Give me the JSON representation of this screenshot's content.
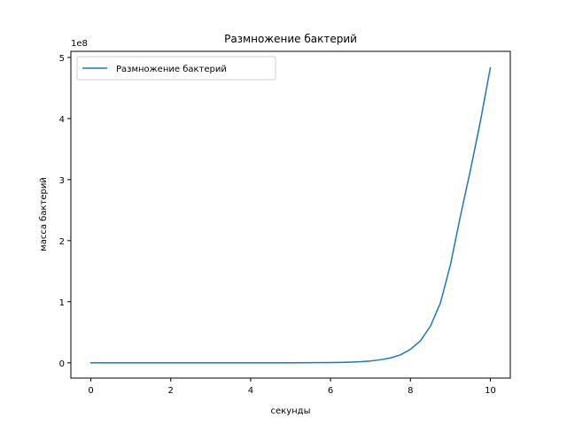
{
  "chart_data": {
    "type": "line",
    "title": "Размножение бактерий",
    "xlabel": "секунды",
    "ylabel": "масса бактерий",
    "y_offset_label": "1e8",
    "xlim": [
      -0.5,
      10.5
    ],
    "ylim": [
      -0.25,
      5.1
    ],
    "y_scale_factor": 100000000,
    "x_ticks": [
      0,
      2,
      4,
      6,
      8,
      10
    ],
    "x_tick_labels": [
      "0",
      "2",
      "4",
      "6",
      "8",
      "10"
    ],
    "y_ticks": [
      0,
      1,
      2,
      3,
      4,
      5
    ],
    "y_tick_labels": [
      "0",
      "1",
      "2",
      "3",
      "4",
      "5"
    ],
    "grid": false,
    "legend_position": "upper-left",
    "series": [
      {
        "name": "Размножение бактерий",
        "color": "#1f77b4",
        "x": [
          0,
          0.5,
          1,
          1.5,
          2,
          2.5,
          3,
          3.5,
          4,
          4.5,
          5,
          5.5,
          6,
          6.25,
          6.5,
          6.75,
          7,
          7.25,
          7.5,
          7.75,
          8,
          8.25,
          8.5,
          8.75,
          9,
          9.25,
          9.5,
          9.75,
          10
        ],
        "values": [
          0,
          0,
          0,
          0,
          0,
          0,
          0,
          0,
          0,
          0,
          0.0003,
          0.0012,
          0.004,
          0.006,
          0.011,
          0.018,
          0.03,
          0.05,
          0.08,
          0.13,
          0.22,
          0.36,
          0.6,
          0.98,
          1.6,
          2.4,
          3.15,
          3.95,
          4.83
        ]
      }
    ]
  }
}
